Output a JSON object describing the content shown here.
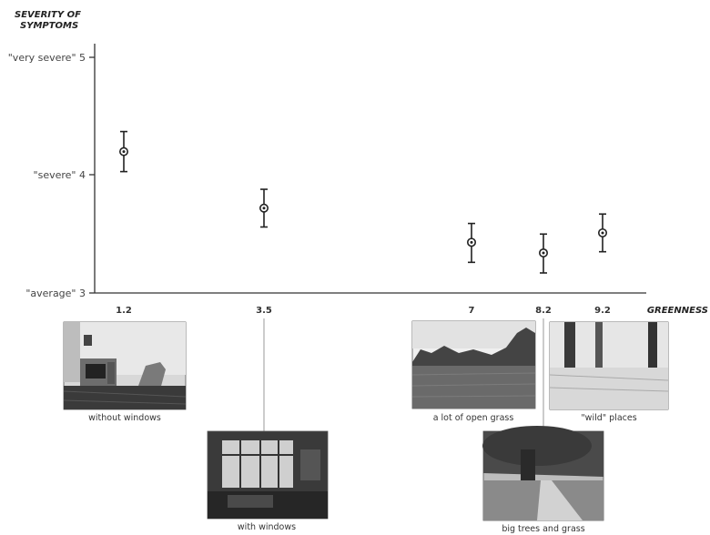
{
  "chart_data": {
    "type": "scatter",
    "title_line1": "SEVERITY OF",
    "title_line2": "SYMPTOMS",
    "xlabel": "GREENNESS",
    "ylim": [
      3,
      5
    ],
    "y_ticks": [
      {
        "value": 5,
        "label": "\"very severe\" 5"
      },
      {
        "value": 4,
        "label": "\"severe\" 4"
      },
      {
        "value": 3,
        "label": "\"average\" 3"
      }
    ],
    "x_tick_labels": [
      "1.2",
      "3.5",
      "7",
      "8.2",
      "9.2"
    ],
    "points": [
      {
        "x": 1.2,
        "y": 4.2,
        "err_low": 4.03,
        "err_high": 4.37,
        "caption": "without windows"
      },
      {
        "x": 3.5,
        "y": 3.72,
        "err_low": 3.56,
        "err_high": 3.88,
        "caption": "with windows"
      },
      {
        "x": 7,
        "y": 3.43,
        "err_low": 3.26,
        "err_high": 3.59,
        "caption": "a lot of open grass"
      },
      {
        "x": 8.2,
        "y": 3.34,
        "err_low": 3.17,
        "err_high": 3.5,
        "caption": "big trees and grass"
      },
      {
        "x": 9.2,
        "y": 3.51,
        "err_low": 3.35,
        "err_high": 3.67,
        "caption": "\"wild\" places"
      }
    ],
    "grid": false
  }
}
